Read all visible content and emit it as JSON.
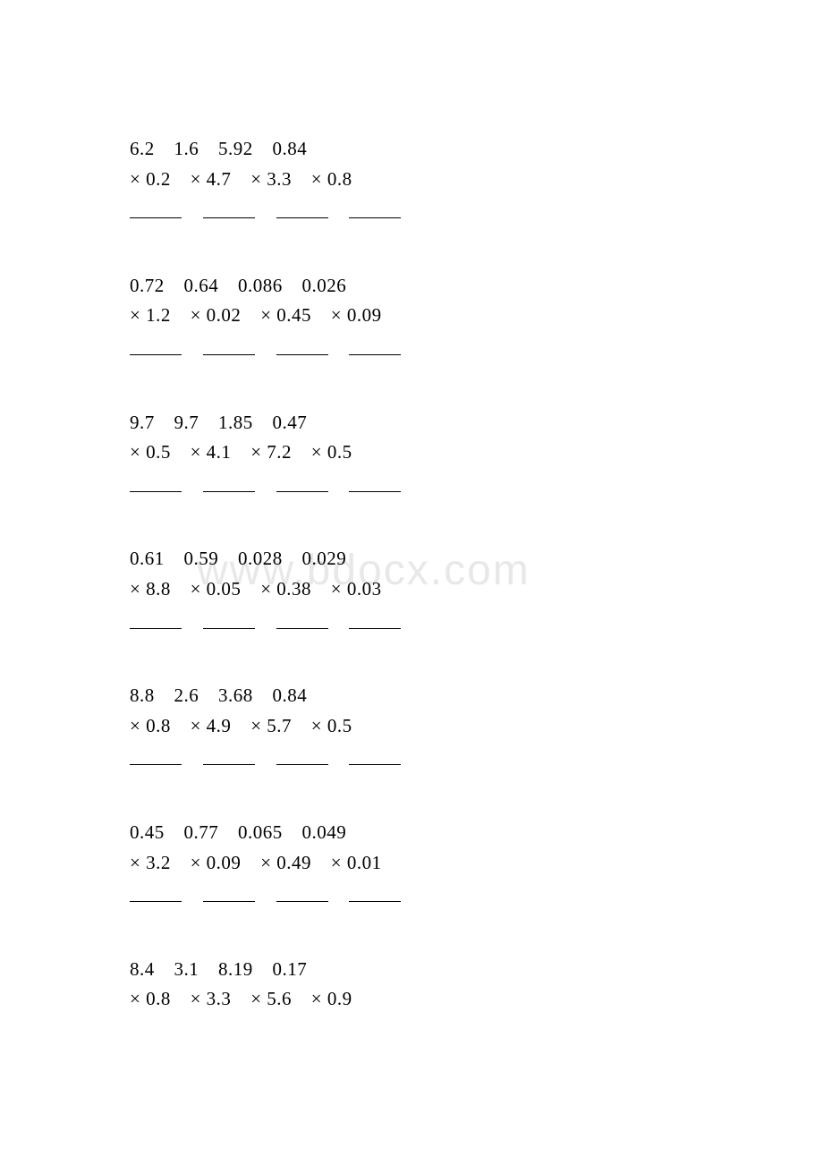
{
  "watermark": "www.bdocx.com",
  "text_color": "#000000",
  "background_color": "#ffffff",
  "watermark_color": "#e8e8e8",
  "font_size": 21,
  "groups": [
    {
      "operands": [
        "6.2",
        "1.6",
        "5.92",
        "0.84"
      ],
      "multipliers": [
        "× 0.2",
        "× 4.7",
        "× 3.3",
        "× 0.8"
      ]
    },
    {
      "operands": [
        "0.72",
        "0.64",
        "0.086",
        "0.026"
      ],
      "multipliers": [
        "× 1.2",
        "× 0.02",
        "× 0.45",
        "× 0.09"
      ]
    },
    {
      "operands": [
        "9.7",
        "9.7",
        "1.85",
        "0.47"
      ],
      "multipliers": [
        "× 0.5",
        "× 4.1",
        "× 7.2",
        "× 0.5"
      ]
    },
    {
      "operands": [
        "0.61",
        "0.59",
        "0.028",
        "0.029"
      ],
      "multipliers": [
        "× 8.8",
        "× 0.05",
        "× 0.38",
        "× 0.03"
      ]
    },
    {
      "operands": [
        "8.8",
        "2.6",
        "3.68",
        "0.84"
      ],
      "multipliers": [
        "× 0.8",
        "× 4.9",
        "× 5.7",
        "× 0.5"
      ]
    },
    {
      "operands": [
        "0.45",
        "0.77",
        "0.065",
        "0.049"
      ],
      "multipliers": [
        "× 3.2",
        "× 0.09",
        "× 0.49",
        "× 0.01"
      ]
    },
    {
      "operands": [
        "8.4",
        "3.1",
        "8.19",
        "0.17"
      ],
      "multipliers": [
        "× 0.8",
        "× 3.3",
        "× 5.6",
        "× 0.9"
      ],
      "no_blanks": true
    }
  ]
}
